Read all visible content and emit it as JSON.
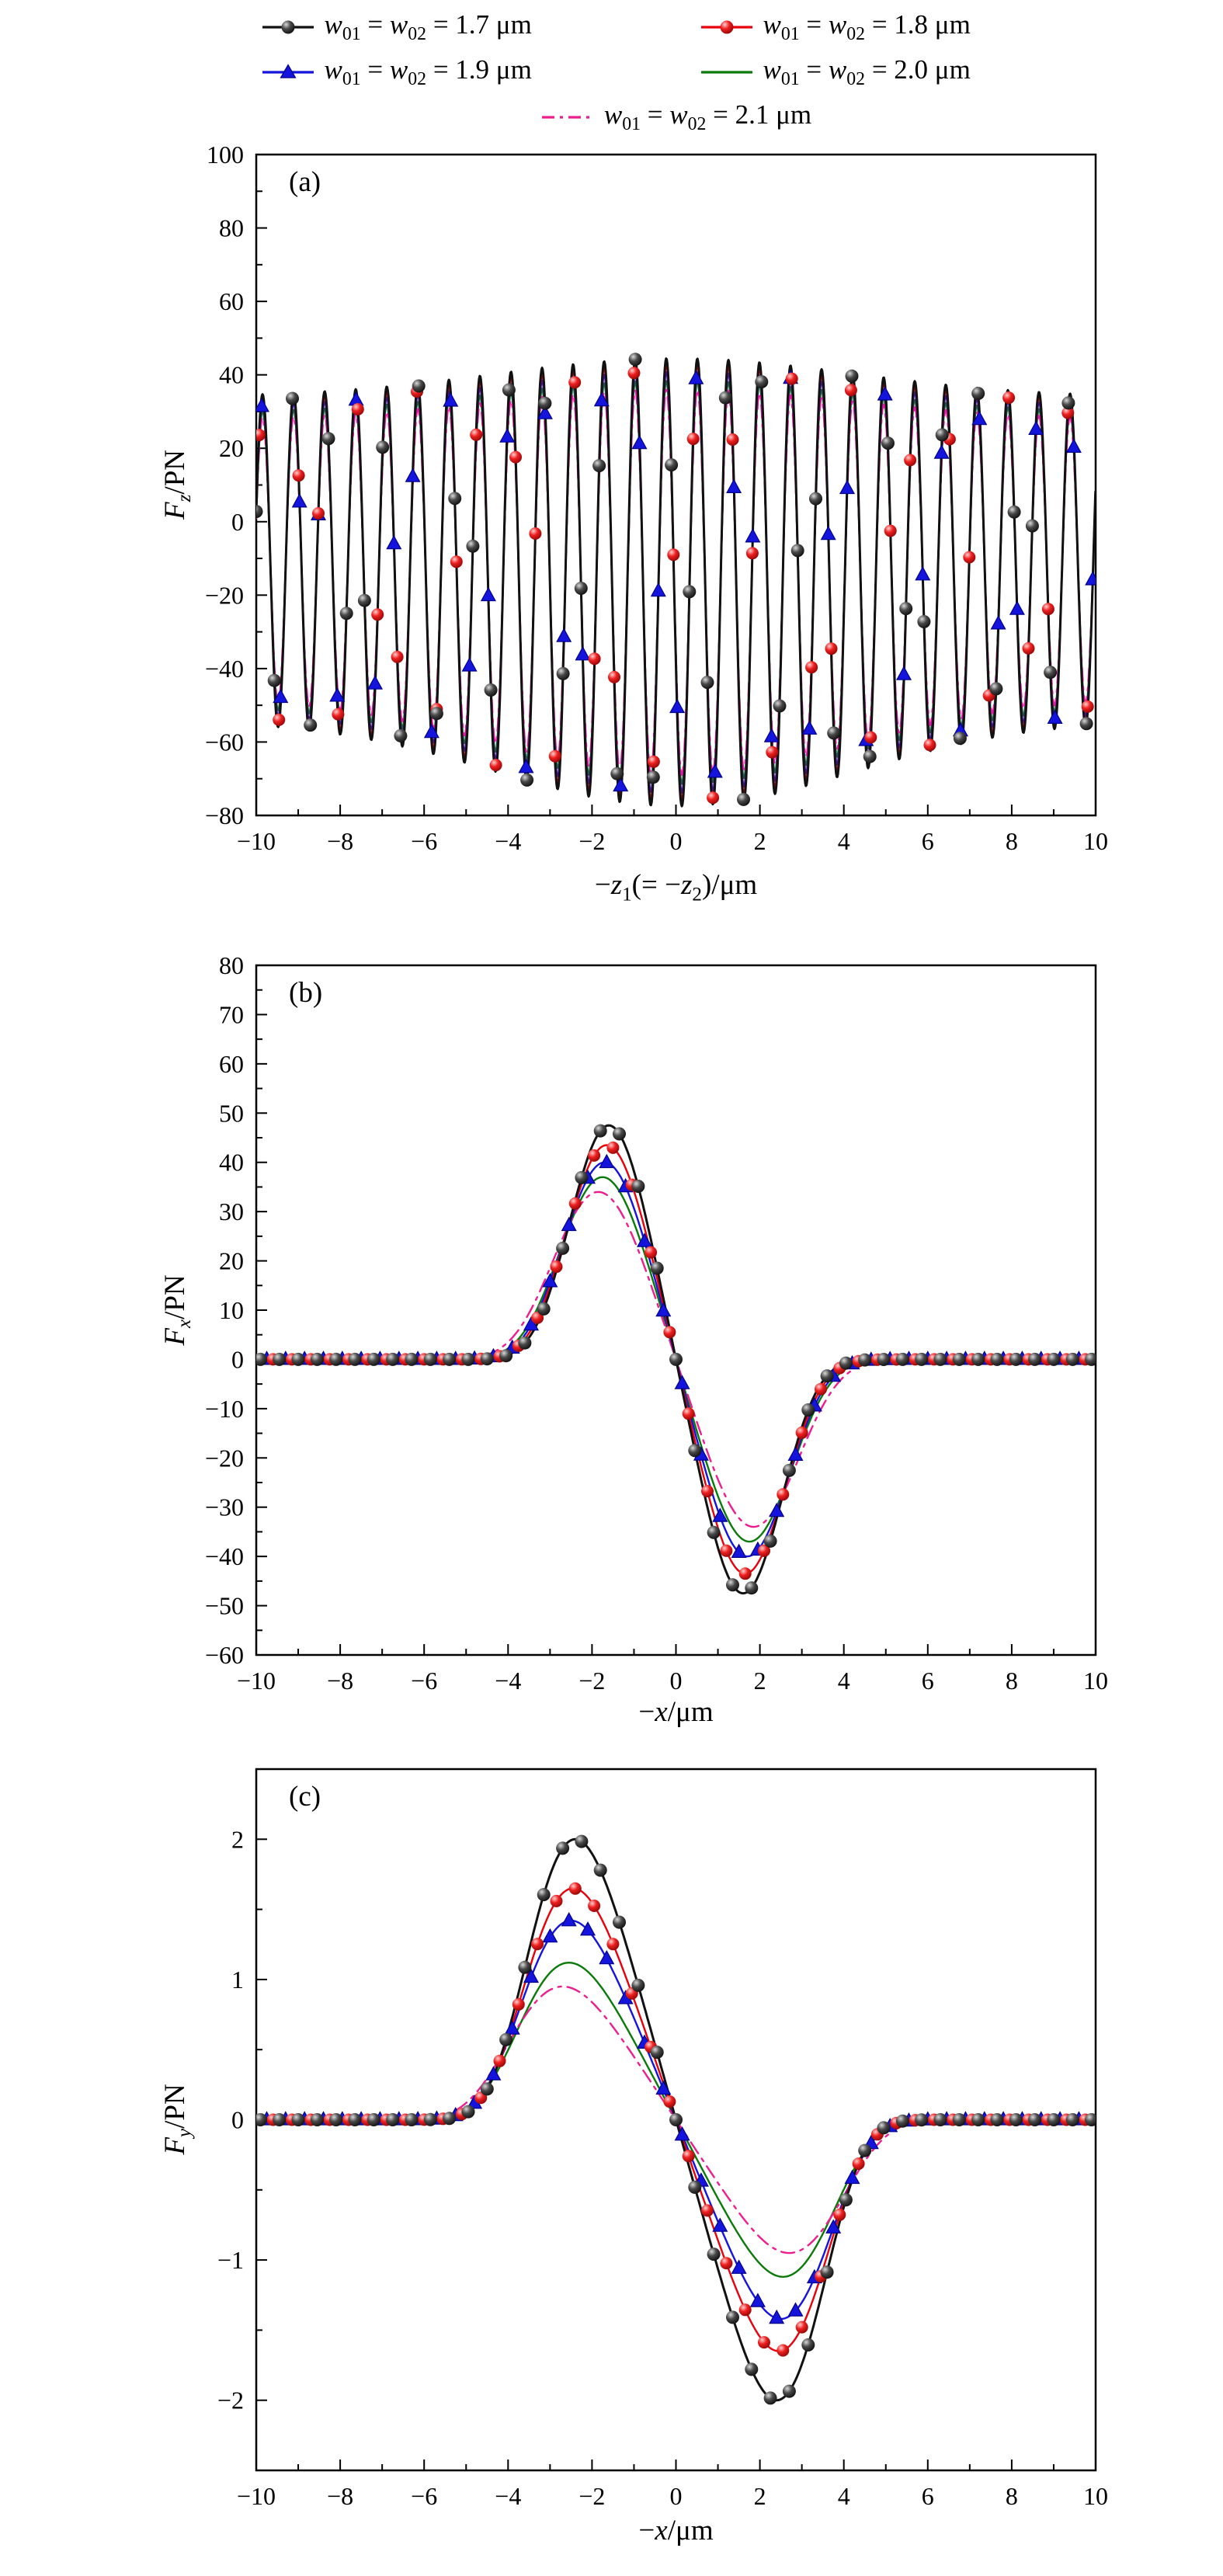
{
  "figure": {
    "legend_items": [
      {
        "name": "1.7",
        "label": "w01 = w02 = 1.7 μm",
        "color": "#111111",
        "marker": "sphere-black",
        "line": "solid"
      },
      {
        "name": "1.8",
        "label": "w01 = w02 = 1.8 μm",
        "color": "#e8000b",
        "marker": "sphere-red",
        "line": "solid"
      },
      {
        "name": "1.9",
        "label": "w01 = w02 = 1.9 μm",
        "color": "#1414dc",
        "marker": "triangle",
        "line": "solid"
      },
      {
        "name": "2.0",
        "label": "w01 = w02 = 2.0 μm",
        "color": "#0a7a0a",
        "marker": "none",
        "line": "solid"
      },
      {
        "name": "2.1",
        "label": "w01 = w02 = 2.1 μm",
        "color": "#ee1d8e",
        "marker": "none",
        "line": "dashdot"
      }
    ],
    "legend_rows": [
      [
        0,
        1
      ],
      [
        2,
        3
      ],
      [
        4
      ]
    ]
  },
  "chart_data": [
    {
      "id": "a",
      "type": "line",
      "panel_label": "(a)",
      "xlabel": "−z1(= −z2)/μm",
      "ylabel": "Fz/PN",
      "xlim": [
        -10,
        10
      ],
      "ylim": [
        -80,
        100
      ],
      "x_ticks": [
        -10,
        -8,
        -6,
        -4,
        -2,
        0,
        2,
        4,
        6,
        8,
        10
      ],
      "y_ticks": [
        -80,
        -60,
        -40,
        -20,
        0,
        20,
        40,
        60,
        80,
        100
      ],
      "x_minor_step": 1,
      "y_minor_step": 10,
      "description": "Axial force: rapid standing-wave oscillation, period about 0.74 um; upper envelope about +35 pN at edges rising to +45..47 pN near center; lower envelope about -55 pN at edges deepening to -78 pN near center; the five beam-waist curves nearly overlap, amplitude shrinking slightly as w0 grows; markers sample the curves every ~0.45 um and so appear scattered in phase.",
      "oscillation": {
        "period": 0.74,
        "peak_x": -9.85,
        "mean_base": -10,
        "mean_dip": 6.5,
        "mean_width": 6,
        "amp_base": 44,
        "amp_bump": 17,
        "amp_width": 6
      },
      "series": [
        {
          "name": "1.7 μm",
          "scale": 1.0,
          "marker_step": 0.43,
          "marker_start": -10.0
        },
        {
          "name": "1.8 μm",
          "scale": 0.97,
          "marker_step": 0.47,
          "marker_start": -9.93
        },
        {
          "name": "1.9 μm",
          "scale": 0.94,
          "marker_step": 0.45,
          "marker_start": -9.87
        },
        {
          "name": "2.0 μm",
          "scale": 0.9
        },
        {
          "name": "2.1 μm",
          "scale": 0.86
        }
      ],
      "envelope_readings": {
        "upper_max": 47,
        "lower_min": -78,
        "upper_edge": 35,
        "lower_edge": -55
      }
    },
    {
      "id": "b",
      "type": "line",
      "panel_label": "(b)",
      "xlabel": "−x/μm",
      "ylabel": "Fx/PN",
      "xlim": [
        -10,
        10
      ],
      "ylim": [
        -60,
        80
      ],
      "x_ticks": [
        -10,
        -8,
        -6,
        -4,
        -2,
        0,
        2,
        4,
        6,
        8,
        10
      ],
      "y_ticks": [
        -60,
        -50,
        -40,
        -30,
        -20,
        -10,
        0,
        10,
        20,
        30,
        40,
        50,
        60,
        70,
        80
      ],
      "x_minor_step": 1,
      "y_minor_step": 5,
      "description": "Transverse force Fx: antisymmetric pulse, zero for |x| > 4 um, positive peak near x = -1.6 um, negative trough near x = +1.6 um; peak magnitude decreases as beam waist increases.",
      "profile_power": 3,
      "series": [
        {
          "name": "1.7 μm",
          "sigma": 1.6,
          "peak": 47.5,
          "extrema": [
            [
              -1.6,
              47.5
            ],
            [
              1.6,
              -47.5
            ]
          ],
          "marker_step": 0.45,
          "marker_start": -9.9
        },
        {
          "name": "1.8 μm",
          "sigma": 1.65,
          "peak": 43.5,
          "extrema": [
            [
              -1.65,
              43.5
            ],
            [
              1.65,
              -43.5
            ]
          ],
          "marker_step": 0.45,
          "marker_start": -10.05
        },
        {
          "name": "1.9 μm",
          "sigma": 1.7,
          "peak": 40,
          "extrema": [
            [
              -1.7,
              40
            ],
            [
              1.7,
              -40
            ]
          ],
          "marker_step": 0.45,
          "marker_start": -10.2
        },
        {
          "name": "2.0 μm",
          "sigma": 1.75,
          "peak": 37,
          "extrema": [
            [
              -1.75,
              37
            ],
            [
              1.75,
              -37
            ]
          ]
        },
        {
          "name": "2.1 μm",
          "sigma": 1.85,
          "peak": 34,
          "extrema": [
            [
              -1.85,
              34
            ],
            [
              1.85,
              -34
            ]
          ]
        }
      ]
    },
    {
      "id": "c",
      "type": "line",
      "panel_label": "(c)",
      "xlabel": "−x/μm",
      "ylabel": "Fy/PN",
      "xlim": [
        -10,
        10
      ],
      "ylim": [
        -2.5,
        2.5
      ],
      "x_ticks": [
        -10,
        -8,
        -6,
        -4,
        -2,
        0,
        2,
        4,
        6,
        8,
        10
      ],
      "y_ticks": [
        -2,
        -1,
        0,
        1,
        2
      ],
      "x_minor_step": 1,
      "y_minor_step": 0.5,
      "description": "Transverse force Fy: antisymmetric pulse, zero for |x| > 5 um, positive peak near x = -2.4 um, negative trough near x = +2.4 um; peak decreases from about 2.0 pN (w0 = 1.7 um) to about 0.95 pN (w0 = 2.1 um).",
      "profile_power": 4,
      "series": [
        {
          "name": "1.7 μm",
          "sigma": 2.4,
          "peak": 2.0,
          "extrema": [
            [
              -2.4,
              2.0
            ],
            [
              2.4,
              -2.0
            ]
          ],
          "marker_step": 0.45,
          "marker_start": -9.9
        },
        {
          "name": "1.8 μm",
          "sigma": 2.45,
          "peak": 1.65,
          "extrema": [
            [
              -2.45,
              1.65
            ],
            [
              2.45,
              -1.65
            ]
          ],
          "marker_step": 0.45,
          "marker_start": -10.05
        },
        {
          "name": "1.9 μm",
          "sigma": 2.5,
          "peak": 1.42,
          "extrema": [
            [
              -2.5,
              1.42
            ],
            [
              2.5,
              -1.42
            ]
          ],
          "marker_step": 0.45,
          "marker_start": -10.2
        },
        {
          "name": "2.0 μm",
          "sigma": 2.55,
          "peak": 1.12,
          "extrema": [
            [
              -2.55,
              1.12
            ],
            [
              2.55,
              -1.12
            ]
          ]
        },
        {
          "name": "2.1 μm",
          "sigma": 2.7,
          "peak": 0.95,
          "extrema": [
            [
              -2.7,
              0.95
            ],
            [
              2.7,
              -0.95
            ]
          ]
        }
      ]
    }
  ]
}
